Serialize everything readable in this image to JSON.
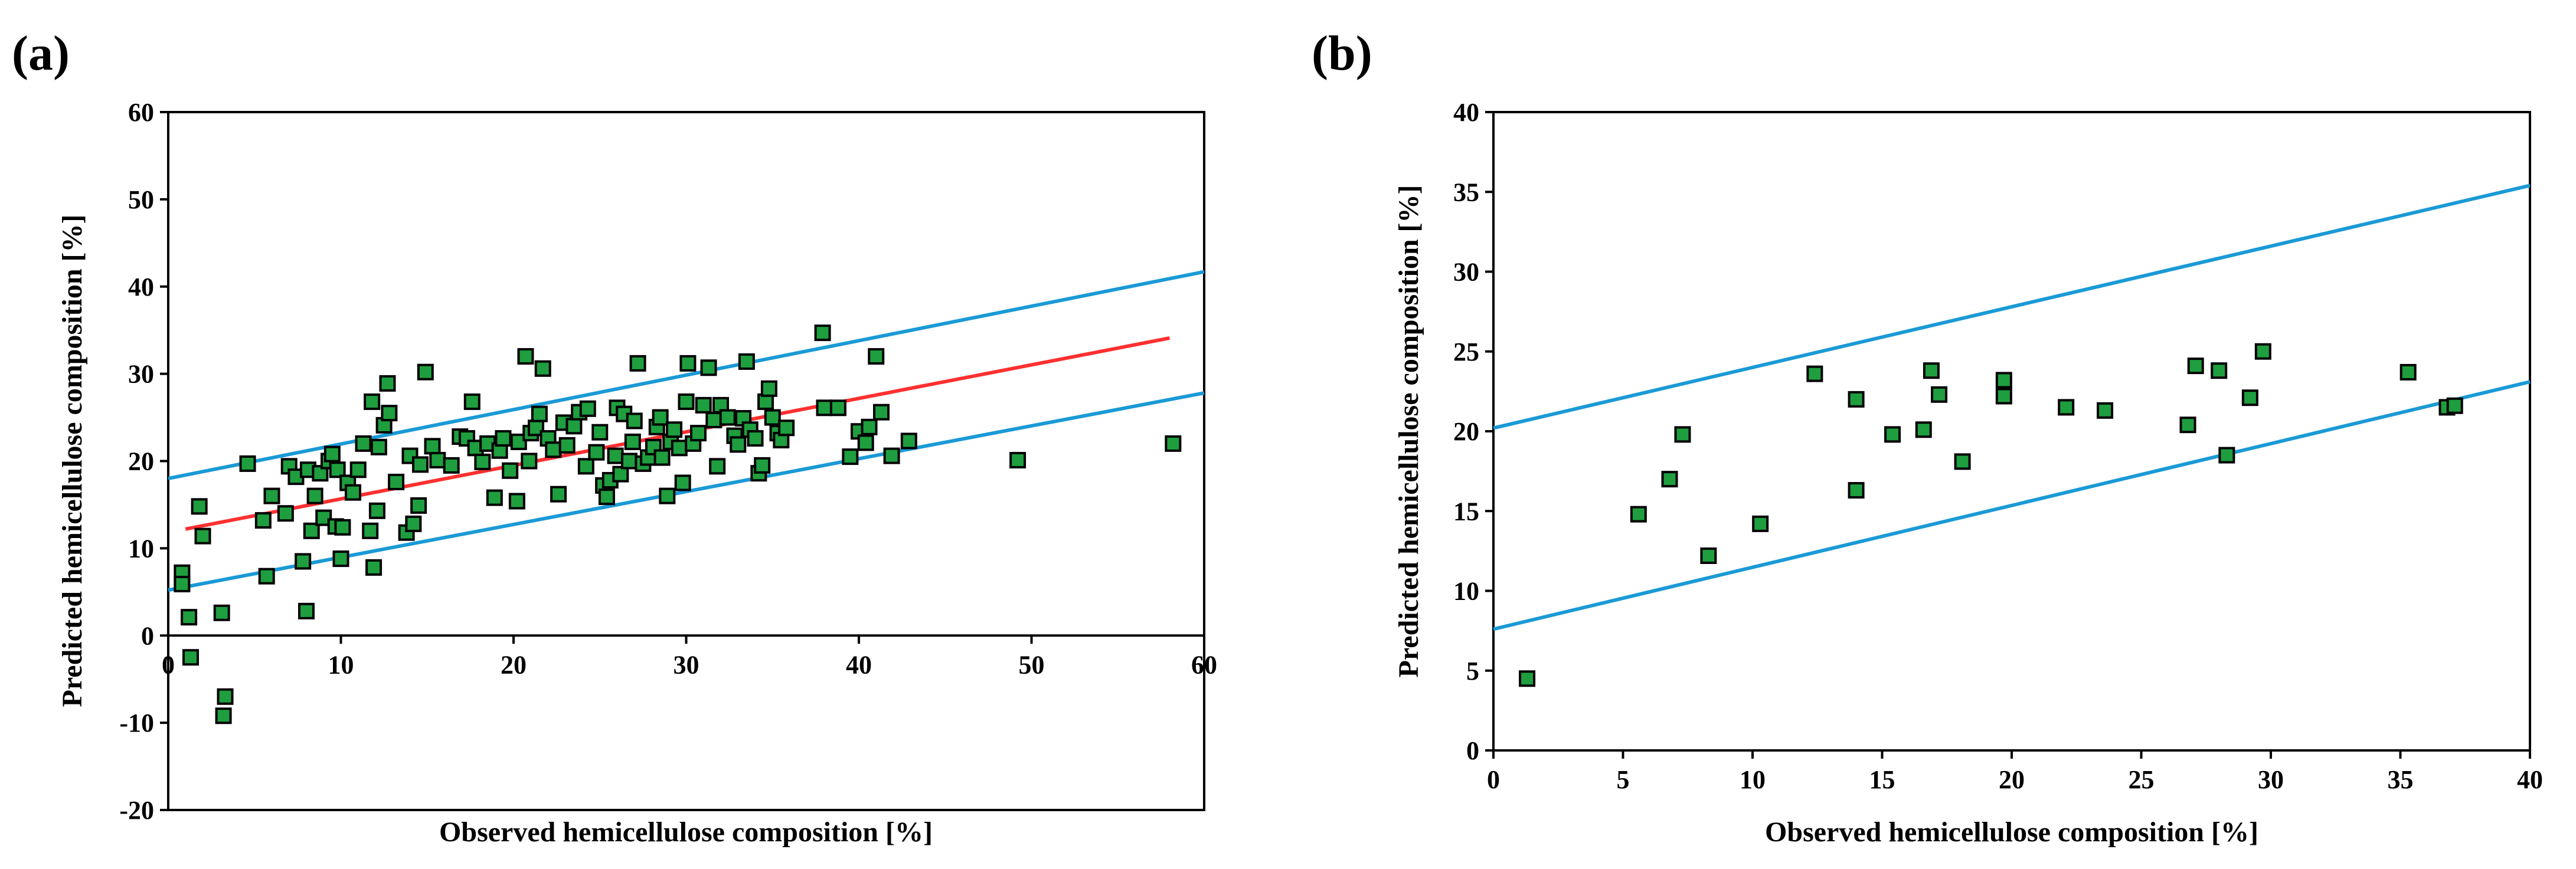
{
  "chart_data": [
    {
      "type": "scatter",
      "panel_label": "(a)",
      "title": "",
      "xlabel": "Observed hemicellulose composition [%]",
      "ylabel": "Predicted hemicellulose composition [%]",
      "xlim": [
        0,
        60
      ],
      "ylim": [
        -20,
        60
      ],
      "xticks": [
        0,
        10,
        20,
        30,
        40,
        50,
        60
      ],
      "yticks": [
        -20,
        -10,
        0,
        10,
        20,
        30,
        40,
        50,
        60
      ],
      "grid": false,
      "legend": "none",
      "colors": {
        "points": "#1e9e3e",
        "point_edge": "#000000",
        "fit": "#ff3030",
        "bounds": "#1a9ad6"
      },
      "series": [
        {
          "name": "data",
          "points": [
            [
              0.8,
              7.2
            ],
            [
              0.8,
              5.9
            ],
            [
              1.2,
              2.1
            ],
            [
              1.3,
              -2.5
            ],
            [
              1.8,
              14.8
            ],
            [
              2.0,
              11.4
            ],
            [
              3.1,
              2.6
            ],
            [
              3.2,
              -9.2
            ],
            [
              3.3,
              -7.0
            ],
            [
              4.6,
              19.7
            ],
            [
              5.5,
              13.2
            ],
            [
              5.7,
              6.8
            ],
            [
              6.0,
              16.0
            ],
            [
              6.8,
              14.0
            ],
            [
              7.0,
              19.4
            ],
            [
              7.4,
              18.2
            ],
            [
              7.8,
              8.5
            ],
            [
              8.0,
              2.8
            ],
            [
              8.1,
              19.0
            ],
            [
              8.3,
              12.0
            ],
            [
              8.5,
              16.0
            ],
            [
              8.8,
              18.6
            ],
            [
              9.0,
              13.5
            ],
            [
              9.3,
              20.0
            ],
            [
              9.5,
              20.8
            ],
            [
              9.7,
              12.5
            ],
            [
              9.8,
              19.0
            ],
            [
              10.0,
              8.8
            ],
            [
              10.1,
              12.4
            ],
            [
              10.4,
              17.5
            ],
            [
              10.7,
              16.4
            ],
            [
              11.0,
              19.0
            ],
            [
              11.3,
              22.0
            ],
            [
              11.7,
              12.0
            ],
            [
              11.8,
              26.8
            ],
            [
              11.9,
              7.8
            ],
            [
              12.1,
              14.3
            ],
            [
              12.2,
              21.6
            ],
            [
              12.5,
              24.1
            ],
            [
              12.7,
              28.9
            ],
            [
              12.8,
              25.5
            ],
            [
              13.2,
              17.6
            ],
            [
              13.8,
              11.8
            ],
            [
              14.0,
              20.6
            ],
            [
              14.2,
              12.8
            ],
            [
              14.5,
              14.9
            ],
            [
              14.6,
              19.6
            ],
            [
              14.9,
              30.2
            ],
            [
              15.3,
              21.7
            ],
            [
              15.6,
              20.1
            ],
            [
              16.4,
              19.5
            ],
            [
              16.9,
              22.8
            ],
            [
              17.3,
              22.6
            ],
            [
              17.6,
              26.8
            ],
            [
              17.8,
              21.5
            ],
            [
              18.2,
              19.9
            ],
            [
              18.5,
              22.0
            ],
            [
              18.9,
              15.8
            ],
            [
              19.2,
              21.2
            ],
            [
              19.4,
              22.6
            ],
            [
              19.8,
              18.9
            ],
            [
              20.2,
              15.4
            ],
            [
              20.3,
              22.2
            ],
            [
              20.7,
              32.0
            ],
            [
              20.9,
              20.0
            ],
            [
              21.0,
              23.2
            ],
            [
              21.3,
              23.8
            ],
            [
              21.5,
              25.4
            ],
            [
              21.7,
              30.6
            ],
            [
              22.0,
              22.6
            ],
            [
              22.3,
              21.3
            ],
            [
              22.6,
              16.2
            ],
            [
              22.9,
              24.4
            ],
            [
              23.1,
              21.8
            ],
            [
              23.5,
              24.0
            ],
            [
              23.8,
              25.6
            ],
            [
              24.2,
              19.4
            ],
            [
              24.3,
              26.0
            ],
            [
              24.8,
              21.0
            ],
            [
              25.0,
              23.3
            ],
            [
              25.2,
              17.2
            ],
            [
              25.4,
              15.9
            ],
            [
              25.6,
              17.8
            ],
            [
              25.9,
              20.6
            ],
            [
              26.0,
              26.1
            ],
            [
              26.2,
              18.5
            ],
            [
              26.4,
              25.4
            ],
            [
              26.7,
              20.0
            ],
            [
              26.9,
              22.2
            ],
            [
              27.0,
              24.6
            ],
            [
              27.2,
              31.2
            ],
            [
              27.5,
              19.7
            ],
            [
              27.8,
              20.4
            ],
            [
              28.1,
              21.6
            ],
            [
              28.3,
              23.9
            ],
            [
              28.5,
              25.0
            ],
            [
              28.6,
              20.4
            ],
            [
              28.9,
              16.0
            ],
            [
              29.1,
              22.2
            ],
            [
              29.3,
              23.6
            ],
            [
              29.6,
              21.5
            ],
            [
              29.8,
              17.5
            ],
            [
              30.0,
              26.8
            ],
            [
              30.1,
              31.2
            ],
            [
              30.4,
              22.0
            ],
            [
              30.7,
              23.2
            ],
            [
              31.0,
              26.4
            ],
            [
              31.3,
              30.7
            ],
            [
              31.6,
              24.7
            ],
            [
              31.8,
              19.4
            ],
            [
              32.0,
              26.4
            ],
            [
              32.4,
              25.0
            ],
            [
              32.8,
              22.9
            ],
            [
              33.0,
              21.9
            ],
            [
              33.3,
              24.9
            ],
            [
              33.5,
              31.4
            ],
            [
              33.7,
              23.6
            ],
            [
              34.0,
              22.6
            ],
            [
              34.2,
              18.6
            ],
            [
              34.4,
              19.5
            ],
            [
              34.6,
              26.8
            ],
            [
              34.8,
              28.3
            ],
            [
              35.0,
              25.0
            ],
            [
              35.3,
              23.2
            ],
            [
              35.5,
              22.4
            ],
            [
              35.8,
              23.8
            ],
            [
              37.9,
              34.7
            ],
            [
              38.0,
              26.1
            ],
            [
              38.8,
              26.1
            ],
            [
              39.5,
              20.5
            ],
            [
              40.0,
              23.4
            ],
            [
              40.4,
              22.1
            ],
            [
              40.6,
              23.9
            ],
            [
              41.0,
              32.0
            ],
            [
              41.3,
              25.6
            ],
            [
              41.9,
              20.6
            ],
            [
              42.9,
              22.3
            ],
            [
              49.2,
              20.1
            ],
            [
              58.2,
              22.0
            ]
          ]
        }
      ],
      "lines": [
        {
          "name": "fit",
          "color": "red",
          "x": [
            1.0,
            58.0
          ],
          "y": [
            12.2,
            34.1
          ]
        },
        {
          "name": "upper bound",
          "color": "blue",
          "x": [
            0,
            60
          ],
          "y": [
            18.0,
            41.7
          ]
        },
        {
          "name": "lower bound",
          "color": "blue",
          "x": [
            0,
            60
          ],
          "y": [
            5.2,
            27.8
          ]
        }
      ]
    },
    {
      "type": "scatter",
      "panel_label": "(b)",
      "title": "",
      "xlabel": "Observed hemicellulose composition [%]",
      "ylabel": "Predicted hemicellulose composition [%]",
      "xlim": [
        0,
        40
      ],
      "ylim": [
        0,
        40
      ],
      "xticks": [
        0,
        5,
        10,
        15,
        20,
        25,
        30,
        35,
        40
      ],
      "yticks": [
        0,
        5,
        10,
        15,
        20,
        25,
        30,
        35,
        40
      ],
      "grid": false,
      "legend": "none",
      "colors": {
        "points": "#1e9e3e",
        "point_edge": "#000000",
        "bounds": "#1a9ad6"
      },
      "series": [
        {
          "name": "data",
          "points": [
            [
              1.3,
              4.5
            ],
            [
              5.6,
              14.8
            ],
            [
              6.8,
              17.0
            ],
            [
              7.3,
              19.8
            ],
            [
              8.3,
              12.2
            ],
            [
              10.3,
              14.2
            ],
            [
              12.4,
              23.6
            ],
            [
              14.0,
              22.0
            ],
            [
              14.0,
              16.3
            ],
            [
              15.4,
              19.8
            ],
            [
              16.6,
              20.1
            ],
            [
              16.9,
              23.8
            ],
            [
              17.2,
              22.3
            ],
            [
              18.1,
              18.1
            ],
            [
              19.7,
              23.2
            ],
            [
              19.7,
              22.2
            ],
            [
              22.1,
              21.5
            ],
            [
              23.6,
              21.3
            ],
            [
              26.8,
              20.4
            ],
            [
              27.1,
              24.1
            ],
            [
              28.0,
              23.8
            ],
            [
              28.3,
              18.5
            ],
            [
              29.2,
              22.1
            ],
            [
              29.7,
              25.0
            ],
            [
              35.3,
              23.7
            ],
            [
              36.8,
              21.5
            ],
            [
              37.1,
              21.6
            ]
          ]
        }
      ],
      "lines": [
        {
          "name": "upper bound",
          "color": "blue",
          "x": [
            0,
            40
          ],
          "y": [
            20.2,
            35.4
          ]
        },
        {
          "name": "lower bound",
          "color": "blue",
          "x": [
            0,
            40
          ],
          "y": [
            7.6,
            23.1
          ]
        }
      ]
    }
  ]
}
